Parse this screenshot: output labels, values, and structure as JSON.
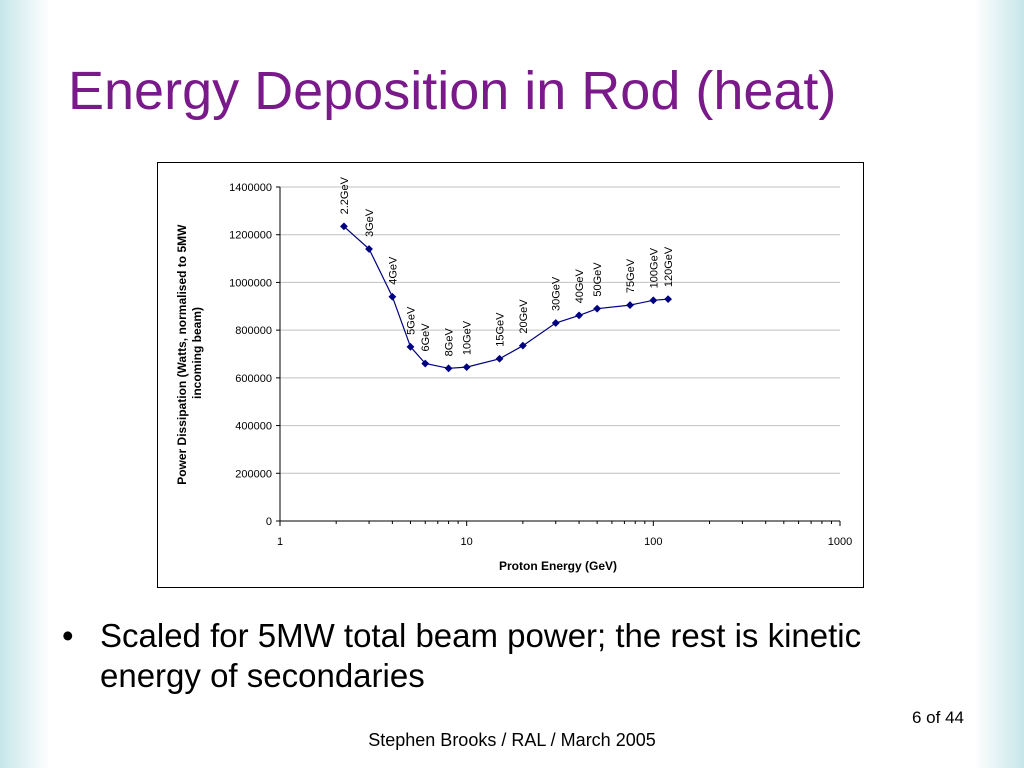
{
  "slide": {
    "title": "Energy Deposition in Rod (heat)",
    "bullet_marker": "•",
    "bullet": "Scaled for 5MW total beam power; the rest is kinetic energy of secondaries",
    "page_number": "6 of 44",
    "footer": "Stephen Brooks / RAL / March 2005",
    "title_color": "#7a1a8a"
  },
  "chart_data": {
    "type": "scatter",
    "title": "",
    "xlabel": "Proton Energy (GeV)",
    "ylabel_lines": [
      "Power Dissipation (Watts, normalised to 5MW",
      "incoming beam)"
    ],
    "x_scale": "log",
    "xlim": [
      1,
      1000
    ],
    "x_ticks": [
      1,
      10,
      100,
      1000
    ],
    "x_tick_labels": [
      "1",
      "10",
      "100",
      "1000"
    ],
    "ylim": [
      0,
      1400000
    ],
    "y_ticks": [
      0,
      200000,
      400000,
      600000,
      800000,
      1000000,
      1200000,
      1400000
    ],
    "y_tick_labels": [
      "0",
      "200000",
      "400000",
      "600000",
      "800000",
      "1000000",
      "1200000",
      "1400000"
    ],
    "grid": "horizontal",
    "legend": "none",
    "series_color": "#000080",
    "points": [
      {
        "x": 2.2,
        "y": 1235000,
        "label": "2.2GeV"
      },
      {
        "x": 3,
        "y": 1140000,
        "label": "3GeV"
      },
      {
        "x": 4,
        "y": 940000,
        "label": "4GeV"
      },
      {
        "x": 5,
        "y": 730000,
        "label": "5GeV"
      },
      {
        "x": 6,
        "y": 660000,
        "label": "6GeV"
      },
      {
        "x": 8,
        "y": 640000,
        "label": "8GeV"
      },
      {
        "x": 10,
        "y": 645000,
        "label": "10GeV"
      },
      {
        "x": 15,
        "y": 680000,
        "label": "15GeV"
      },
      {
        "x": 20,
        "y": 735000,
        "label": "20GeV"
      },
      {
        "x": 30,
        "y": 830000,
        "label": "30GeV"
      },
      {
        "x": 40,
        "y": 862000,
        "label": "40GeV"
      },
      {
        "x": 50,
        "y": 890000,
        "label": "50GeV"
      },
      {
        "x": 75,
        "y": 905000,
        "label": "75GeV"
      },
      {
        "x": 100,
        "y": 925000,
        "label": "100GeV"
      },
      {
        "x": 120,
        "y": 930000,
        "label": "120GeV"
      }
    ]
  }
}
